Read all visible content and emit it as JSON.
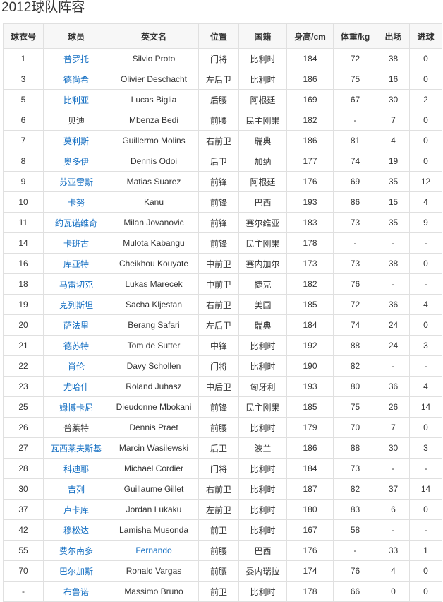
{
  "title": "2012球队阵容",
  "link_color": "#136ec2",
  "columns": [
    "球衣号",
    "球员",
    "英文名",
    "位置",
    "国籍",
    "身高/cm",
    "体重/kg",
    "出场",
    "进球"
  ],
  "rows": [
    {
      "no": "1",
      "name": "普罗托",
      "linked": true,
      "en": "Silvio Proto",
      "en_linked": false,
      "pos": "门将",
      "nat": "比利时",
      "h": "184",
      "w": "72",
      "apps": "38",
      "goals": "0"
    },
    {
      "no": "3",
      "name": "德尚希",
      "linked": true,
      "en": "Olivier Deschacht",
      "en_linked": false,
      "pos": "左后卫",
      "nat": "比利时",
      "h": "186",
      "w": "75",
      "apps": "16",
      "goals": "0"
    },
    {
      "no": "5",
      "name": "比利亚",
      "linked": true,
      "en": "Lucas Biglia",
      "en_linked": false,
      "pos": "后腰",
      "nat": "阿根廷",
      "h": "169",
      "w": "67",
      "apps": "30",
      "goals": "2"
    },
    {
      "no": "6",
      "name": "贝迪",
      "linked": false,
      "en": "Mbenza Bedi",
      "en_linked": false,
      "pos": "前腰",
      "nat": "民主刚果",
      "h": "182",
      "w": "-",
      "apps": "7",
      "goals": "0"
    },
    {
      "no": "7",
      "name": "莫利斯",
      "linked": true,
      "en": "Guillermo Molins",
      "en_linked": false,
      "pos": "右前卫",
      "nat": "瑞典",
      "h": "186",
      "w": "81",
      "apps": "4",
      "goals": "0"
    },
    {
      "no": "8",
      "name": "奥多伊",
      "linked": true,
      "en": "Dennis Odoi",
      "en_linked": false,
      "pos": "后卫",
      "nat": "加纳",
      "h": "177",
      "w": "74",
      "apps": "19",
      "goals": "0"
    },
    {
      "no": "9",
      "name": "苏亚雷斯",
      "linked": true,
      "en": "Matias Suarez",
      "en_linked": false,
      "pos": "前锋",
      "nat": "阿根廷",
      "h": "176",
      "w": "69",
      "apps": "35",
      "goals": "12"
    },
    {
      "no": "10",
      "name": "卡努",
      "linked": true,
      "en": "Kanu",
      "en_linked": false,
      "pos": "前锋",
      "nat": "巴西",
      "h": "193",
      "w": "86",
      "apps": "15",
      "goals": "4"
    },
    {
      "no": "11",
      "name": "约瓦诺维奇",
      "linked": true,
      "en": "Milan Jovanovic",
      "en_linked": false,
      "pos": "前锋",
      "nat": "塞尔维亚",
      "h": "183",
      "w": "73",
      "apps": "35",
      "goals": "9"
    },
    {
      "no": "14",
      "name": "卡班古",
      "linked": true,
      "en": "Mulota Kabangu",
      "en_linked": false,
      "pos": "前锋",
      "nat": "民主刚果",
      "h": "178",
      "w": "-",
      "apps": "-",
      "goals": "-"
    },
    {
      "no": "16",
      "name": "库亚特",
      "linked": true,
      "en": "Cheikhou Kouyate",
      "en_linked": false,
      "pos": "中前卫",
      "nat": "塞内加尔",
      "h": "173",
      "w": "73",
      "apps": "38",
      "goals": "0"
    },
    {
      "no": "18",
      "name": "马雷切克",
      "linked": true,
      "en": "Lukas Marecek",
      "en_linked": false,
      "pos": "中前卫",
      "nat": "捷克",
      "h": "182",
      "w": "76",
      "apps": "-",
      "goals": "-"
    },
    {
      "no": "19",
      "name": "克列斯坦",
      "linked": true,
      "en": "Sacha Kljestan",
      "en_linked": false,
      "pos": "右前卫",
      "nat": "美国",
      "h": "185",
      "w": "72",
      "apps": "36",
      "goals": "4"
    },
    {
      "no": "20",
      "name": "萨法里",
      "linked": true,
      "en": "Berang Safari",
      "en_linked": false,
      "pos": "左后卫",
      "nat": "瑞典",
      "h": "184",
      "w": "74",
      "apps": "24",
      "goals": "0"
    },
    {
      "no": "21",
      "name": "德苏特",
      "linked": true,
      "en": "Tom de Sutter",
      "en_linked": false,
      "pos": "中锋",
      "nat": "比利时",
      "h": "192",
      "w": "88",
      "apps": "24",
      "goals": "3"
    },
    {
      "no": "22",
      "name": "肖伦",
      "linked": true,
      "en": "Davy Schollen",
      "en_linked": false,
      "pos": "门将",
      "nat": "比利时",
      "h": "190",
      "w": "82",
      "apps": "-",
      "goals": "-"
    },
    {
      "no": "23",
      "name": "尤哈什",
      "linked": true,
      "en": "Roland Juhasz",
      "en_linked": false,
      "pos": "中后卫",
      "nat": "匈牙利",
      "h": "193",
      "w": "80",
      "apps": "36",
      "goals": "4"
    },
    {
      "no": "25",
      "name": "姆博卡尼",
      "linked": true,
      "en": "Dieudonne Mbokani",
      "en_linked": false,
      "pos": "前锋",
      "nat": "民主刚果",
      "h": "185",
      "w": "75",
      "apps": "26",
      "goals": "14"
    },
    {
      "no": "26",
      "name": "普莱特",
      "linked": false,
      "en": "Dennis Praet",
      "en_linked": false,
      "pos": "前腰",
      "nat": "比利时",
      "h": "179",
      "w": "70",
      "apps": "7",
      "goals": "0"
    },
    {
      "no": "27",
      "name": "瓦西莱夫斯基",
      "linked": true,
      "en": "Marcin Wasilewski",
      "en_linked": false,
      "pos": "后卫",
      "nat": "波兰",
      "h": "186",
      "w": "88",
      "apps": "30",
      "goals": "3"
    },
    {
      "no": "28",
      "name": "科迪耶",
      "linked": true,
      "en": "Michael Cordier",
      "en_linked": false,
      "pos": "门将",
      "nat": "比利时",
      "h": "184",
      "w": "73",
      "apps": "-",
      "goals": "-"
    },
    {
      "no": "30",
      "name": "吉列",
      "linked": true,
      "en": "Guillaume Gillet",
      "en_linked": false,
      "pos": "右前卫",
      "nat": "比利时",
      "h": "187",
      "w": "82",
      "apps": "37",
      "goals": "14"
    },
    {
      "no": "37",
      "name": "卢卡库",
      "linked": true,
      "en": "Jordan Lukaku",
      "en_linked": false,
      "pos": "左前卫",
      "nat": "比利时",
      "h": "180",
      "w": "83",
      "apps": "6",
      "goals": "0"
    },
    {
      "no": "42",
      "name": "穆松达",
      "linked": true,
      "en": "Lamisha Musonda",
      "en_linked": false,
      "pos": "前卫",
      "nat": "比利时",
      "h": "167",
      "w": "58",
      "apps": "-",
      "goals": "-"
    },
    {
      "no": "55",
      "name": "费尔南多",
      "linked": true,
      "en": "Fernando",
      "en_linked": true,
      "pos": "前腰",
      "nat": "巴西",
      "h": "176",
      "w": "-",
      "apps": "33",
      "goals": "1"
    },
    {
      "no": "70",
      "name": "巴尔加斯",
      "linked": true,
      "en": "Ronald Vargas",
      "en_linked": false,
      "pos": "前腰",
      "nat": "委内瑞拉",
      "h": "174",
      "w": "76",
      "apps": "4",
      "goals": "0"
    },
    {
      "no": "-",
      "name": "布鲁诺",
      "linked": true,
      "en": "Massimo Bruno",
      "en_linked": false,
      "pos": "前卫",
      "nat": "比利时",
      "h": "178",
      "w": "66",
      "apps": "0",
      "goals": "0"
    }
  ]
}
